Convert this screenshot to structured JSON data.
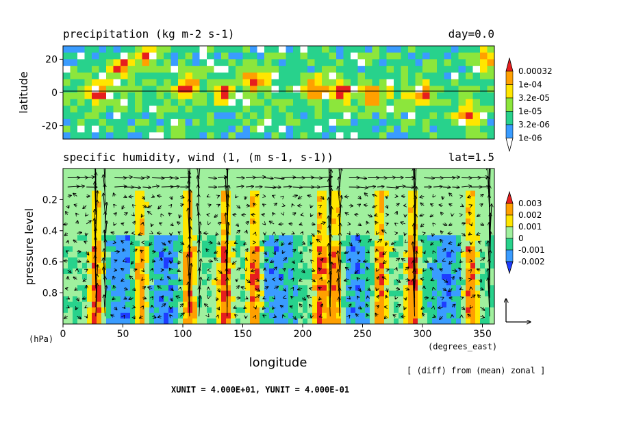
{
  "chart_data": [
    {
      "type": "heatmap",
      "title": "precipitation (kg m-2 s-1)",
      "title_right": "day=0.0",
      "ylabel": "latitude",
      "x_range": [
        0,
        360
      ],
      "y_range": [
        -28,
        28
      ],
      "y_ticks": [
        "20",
        "0",
        "-20"
      ],
      "y_tick_values": [
        20,
        0,
        -20
      ],
      "reference_line_y": 0,
      "colorbar": {
        "labels": [
          "0.00032",
          "1e-04",
          "3.2e-05",
          "1e-05",
          "3.2e-06",
          "1e-06"
        ],
        "colors": [
          "#ffffff",
          "#3a9cff",
          "#28d28c",
          "#8ce63c",
          "#ffe600",
          "#ffa000",
          "#e61e1e"
        ]
      },
      "cells": {
        "nx": 60,
        "ny": 14,
        "seed": 7,
        "hotspots_x": [
          30,
          48,
          72,
          104,
          134,
          160,
          210,
          232,
          258,
          300,
          338,
          352
        ],
        "hotspots_lat": [
          0,
          16,
          22,
          4,
          0,
          8,
          2,
          0,
          -2,
          0,
          -14,
          20
        ]
      }
    },
    {
      "type": "heatmap",
      "title": "specific humidity, wind (1, (m s-1, s-1))",
      "title_right": "lat=1.5",
      "ylabel": "pressure level",
      "xlabel": "longitude",
      "x_unit_label": "(degrees_east)",
      "y_unit_label": "(hPa)",
      "x_range": [
        0,
        360
      ],
      "x_ticks": [
        "0",
        "50",
        "100",
        "150",
        "200",
        "250",
        "300",
        "350"
      ],
      "x_tick_values": [
        0,
        50,
        100,
        150,
        200,
        250,
        300,
        350
      ],
      "y_range": [
        0,
        1
      ],
      "y_ticks": [
        "0.2",
        "0.4",
        "0.6",
        "0.8"
      ],
      "y_tick_values": [
        0.2,
        0.4,
        0.6,
        0.8
      ],
      "colorbar": {
        "labels": [
          "0.003",
          "0.002",
          "0.001",
          "0",
          "-0.001",
          "-0.002"
        ],
        "colors": [
          "#1e3cff",
          "#3a9cff",
          "#28d28c",
          "#a0f09e",
          "#ffe600",
          "#ffa000",
          "#e61e1e"
        ]
      },
      "columns_moist": [
        28,
        65,
        105,
        135,
        160,
        215,
        228,
        265,
        292,
        340
      ],
      "columns_dry": [
        50,
        85,
        180,
        245,
        320
      ],
      "vector_updrafts": [
        30,
        108,
        138,
        225,
        292,
        355
      ],
      "annotation": "[ (diff) from (mean) zonal ]"
    }
  ],
  "footer": "XUNIT = 4.000E+01, YUNIT = 4.000E-01"
}
